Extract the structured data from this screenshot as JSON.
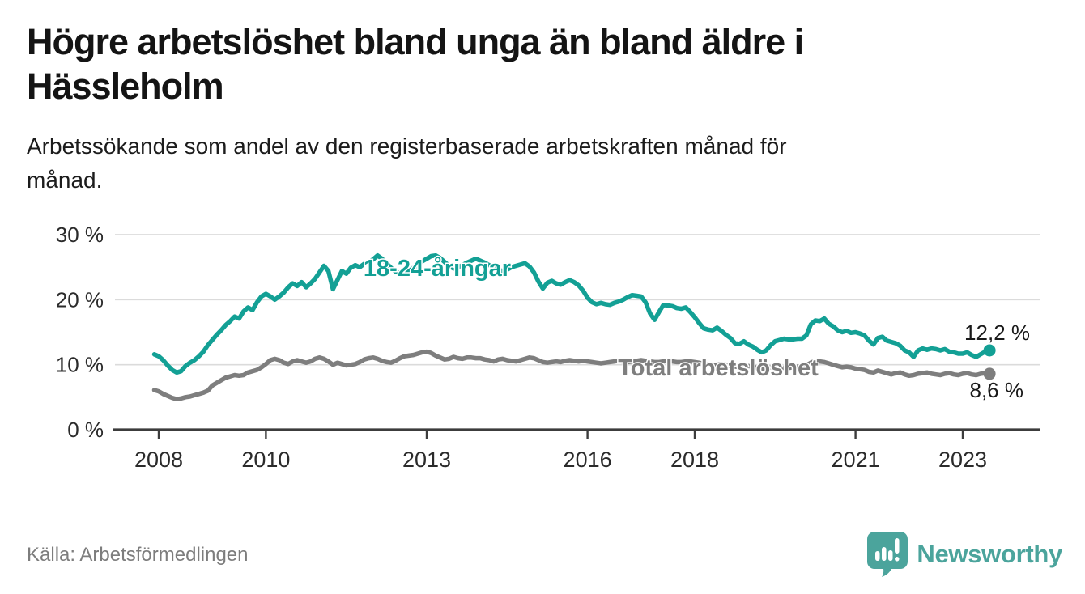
{
  "header": {
    "title": "Högre arbetslöshet bland unga än bland äldre i\nHässleholm",
    "subtitle": "Arbetssökande som andel av den registerbaserade arbetskraften månad för\nmånad."
  },
  "footer": {
    "source": "Källa: Arbetsförmedlingen",
    "logo_text": "Newsworthy"
  },
  "colors": {
    "youth_line": "#13A095",
    "total_line": "#7E7E7E",
    "grid": "#DBDBDB",
    "axis": "#3C3C3C",
    "tick_text": "#2B2B2B",
    "value_label_text": "#1A1A1A",
    "logo_teal": "#4BA49C",
    "background": "#FFFFFF"
  },
  "chart_data": {
    "type": "line",
    "title": "Högre arbetslöshet bland unga än bland äldre i Hässleholm",
    "subtitle": "Arbetssökande som andel av den registerbaserade arbetskraften månad för månad.",
    "unit": "%",
    "x_start_year": 2007.9167,
    "x_step_years": 0.0833333,
    "xlim": [
      2007.75,
      2023.7
    ],
    "ylim": [
      0,
      32
    ],
    "grid": "horizontal",
    "x_ticks": [
      {
        "year": 2008,
        "label": "2008"
      },
      {
        "year": 2010,
        "label": "2010"
      },
      {
        "year": 2013,
        "label": "2013"
      },
      {
        "year": 2016,
        "label": "2016"
      },
      {
        "year": 2018,
        "label": "2018"
      },
      {
        "year": 2021,
        "label": "2021"
      },
      {
        "year": 2023,
        "label": "2023"
      }
    ],
    "y_ticks": [
      {
        "value": 30,
        "label": "30 %"
      },
      {
        "value": 20,
        "label": "20 %"
      },
      {
        "value": 10,
        "label": "10 %"
      },
      {
        "value": 0,
        "label": "0 %"
      }
    ],
    "series": [
      {
        "name": "18-24-åringar",
        "color": "#13A095",
        "end_label": "12,2 %",
        "end_value": 12.2,
        "values": [
          11.6,
          11.3,
          10.7,
          9.9,
          9.2,
          8.8,
          9.0,
          9.8,
          10.3,
          10.7,
          11.3,
          12.0,
          13.0,
          13.8,
          14.6,
          15.3,
          16.1,
          16.7,
          17.4,
          17.1,
          18.2,
          18.8,
          18.4,
          19.6,
          20.5,
          20.9,
          20.5,
          20.0,
          20.5,
          21.1,
          21.9,
          22.5,
          22.1,
          22.7,
          21.9,
          22.5,
          23.2,
          24.2,
          25.2,
          24.4,
          21.6,
          23.0,
          24.4,
          24.0,
          24.9,
          25.3,
          25.0,
          25.5,
          25.8,
          26.2,
          26.8,
          26.3,
          25.6,
          24.9,
          24.3,
          24.1,
          24.6,
          24.3,
          24.9,
          25.4,
          25.9,
          26.3,
          26.7,
          26.8,
          26.4,
          25.8,
          25.2,
          24.8,
          25.0,
          25.3,
          25.7,
          26.0,
          26.3,
          26.0,
          25.7,
          25.3,
          24.9,
          24.6,
          24.4,
          24.6,
          25.0,
          25.2,
          25.4,
          25.6,
          25.1,
          24.2,
          22.8,
          21.7,
          22.6,
          22.9,
          22.5,
          22.3,
          22.7,
          23.0,
          22.7,
          22.2,
          21.4,
          20.3,
          19.6,
          19.3,
          19.5,
          19.3,
          19.2,
          19.5,
          19.7,
          20.0,
          20.4,
          20.7,
          20.6,
          20.5,
          19.6,
          17.9,
          16.9,
          18.1,
          19.2,
          19.1,
          19.0,
          18.7,
          18.6,
          18.8,
          18.1,
          17.3,
          16.4,
          15.6,
          15.4,
          15.3,
          15.7,
          15.2,
          14.6,
          14.1,
          13.3,
          13.2,
          13.6,
          13.1,
          12.8,
          12.3,
          11.9,
          12.2,
          13.0,
          13.6,
          13.8,
          14.0,
          13.9,
          13.9,
          14.0,
          14.0,
          14.5,
          16.2,
          16.8,
          16.7,
          17.1,
          16.3,
          15.9,
          15.3,
          15.0,
          15.2,
          14.9,
          15.0,
          14.8,
          14.5,
          13.7,
          13.1,
          14.1,
          14.3,
          13.7,
          13.5,
          13.3,
          12.9,
          12.2,
          11.9,
          11.2,
          12.2,
          12.5,
          12.3,
          12.5,
          12.4,
          12.2,
          12.4,
          12.0,
          11.9,
          11.7,
          11.7,
          11.9,
          11.5,
          11.2,
          11.6,
          12.0,
          12.2
        ]
      },
      {
        "name": "Total arbetslöshet",
        "color": "#7E7E7E",
        "end_label": "8,6 %",
        "end_value": 8.6,
        "values": [
          6.1,
          5.9,
          5.5,
          5.2,
          4.9,
          4.7,
          4.8,
          5.0,
          5.1,
          5.3,
          5.5,
          5.7,
          6.0,
          6.8,
          7.2,
          7.6,
          8.0,
          8.2,
          8.4,
          8.3,
          8.4,
          8.8,
          9.0,
          9.2,
          9.6,
          10.1,
          10.7,
          10.9,
          10.7,
          10.3,
          10.1,
          10.5,
          10.7,
          10.5,
          10.3,
          10.5,
          10.9,
          11.1,
          10.9,
          10.5,
          10.0,
          10.3,
          10.1,
          9.9,
          10.0,
          10.1,
          10.4,
          10.8,
          11.0,
          11.1,
          10.9,
          10.6,
          10.4,
          10.3,
          10.6,
          11.0,
          11.3,
          11.4,
          11.5,
          11.7,
          11.9,
          12.0,
          11.8,
          11.4,
          11.1,
          10.8,
          10.9,
          11.2,
          11.0,
          10.9,
          11.1,
          11.1,
          11.0,
          11.0,
          10.8,
          10.7,
          10.5,
          10.8,
          10.9,
          10.7,
          10.6,
          10.5,
          10.7,
          10.9,
          11.1,
          11.0,
          10.7,
          10.4,
          10.3,
          10.4,
          10.5,
          10.4,
          10.6,
          10.7,
          10.6,
          10.5,
          10.6,
          10.5,
          10.4,
          10.3,
          10.2,
          10.3,
          10.4,
          10.5,
          10.6,
          10.5,
          10.4,
          10.5,
          10.6,
          10.7,
          10.6,
          10.5,
          10.4,
          10.4,
          10.5,
          10.6,
          10.5,
          10.4,
          10.4,
          10.5,
          10.5,
          10.4,
          10.3,
          10.1,
          10.0,
          9.9,
          10.0,
          10.1,
          10.0,
          9.8,
          9.7,
          9.7,
          9.8,
          9.8,
          9.7,
          9.5,
          9.4,
          9.4,
          9.6,
          9.7,
          9.6,
          9.5,
          9.5,
          9.6,
          9.7,
          9.8,
          9.9,
          10.3,
          10.6,
          10.5,
          10.4,
          10.2,
          10.0,
          9.8,
          9.6,
          9.7,
          9.6,
          9.4,
          9.3,
          9.2,
          8.9,
          8.8,
          9.1,
          8.9,
          8.7,
          8.5,
          8.7,
          8.8,
          8.5,
          8.3,
          8.4,
          8.6,
          8.7,
          8.8,
          8.6,
          8.5,
          8.4,
          8.6,
          8.7,
          8.5,
          8.4,
          8.6,
          8.7,
          8.5,
          8.4,
          8.6,
          8.7,
          8.6
        ]
      }
    ],
    "layout": {
      "series_labels_inline": true,
      "legend": "none"
    }
  }
}
